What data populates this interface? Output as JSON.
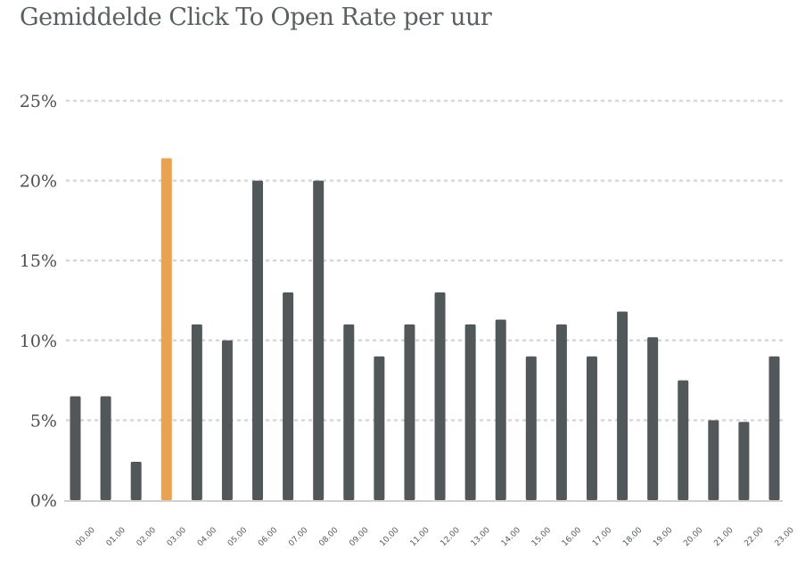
{
  "chart_data": {
    "type": "bar",
    "title": "Gemiddelde Click To Open Rate per uur",
    "xlabel": "",
    "ylabel": "",
    "categories": [
      "00.00",
      "01.00",
      "02.00",
      "03.00",
      "04.00",
      "05.00",
      "06.00",
      "07.00",
      "08.00",
      "09.00",
      "10.00",
      "11.00",
      "12.00",
      "13.00",
      "14.00",
      "15.00",
      "16.00",
      "17.00",
      "18.00",
      "19.00",
      "20.00",
      "21.00",
      "22.00",
      "23.00"
    ],
    "values": [
      6.5,
      6.5,
      2.4,
      21.4,
      11,
      10,
      20,
      13,
      20,
      11,
      9,
      11,
      13,
      11,
      11.3,
      9,
      11,
      9,
      11.8,
      10.2,
      7.5,
      5,
      4.9,
      9
    ],
    "highlight_index": 3,
    "y_ticks": [
      "0%",
      "5%",
      "10%",
      "15%",
      "20%",
      "25%"
    ],
    "ylim": [
      0,
      25
    ],
    "grid": true,
    "legend": "none",
    "colors": {
      "bar": "#52585a",
      "highlight": "#eba24e",
      "grid": "#d6d6d6",
      "axis": "#cfcfcf"
    }
  }
}
